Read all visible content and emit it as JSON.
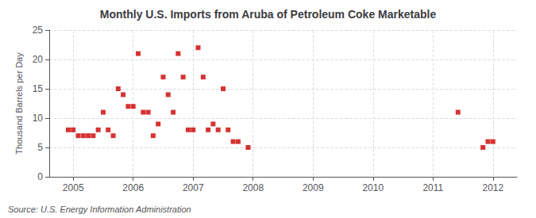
{
  "chart_data": {
    "type": "scatter",
    "title": "Monthly U.S. Imports from Aruba of Petroleum Coke Marketable",
    "ylabel": "Thousand Barrels per Day",
    "annotation": "Source: U.S. Energy Information Administration",
    "x": [
      2004.917,
      2005.0,
      2005.083,
      2005.167,
      2005.25,
      2005.333,
      2005.417,
      2005.5,
      2005.583,
      2005.667,
      2005.75,
      2005.833,
      2005.917,
      2006.0,
      2006.083,
      2006.167,
      2006.25,
      2006.333,
      2006.417,
      2006.5,
      2006.583,
      2006.667,
      2006.75,
      2006.833,
      2006.917,
      2007.0,
      2007.083,
      2007.167,
      2007.25,
      2007.333,
      2007.417,
      2007.5,
      2007.583,
      2007.667,
      2007.75,
      2007.917,
      2011.417,
      2011.833,
      2011.917,
      2012.0
    ],
    "values": [
      8,
      8,
      7,
      7,
      7,
      7,
      8,
      11,
      8,
      7,
      15,
      14,
      12,
      12,
      21,
      11,
      11,
      7,
      9,
      17,
      14,
      11,
      21,
      17,
      8,
      8,
      22,
      17,
      8,
      9,
      8,
      15,
      8,
      6,
      6,
      5,
      11,
      5,
      6,
      6
    ],
    "color": "#cc0000",
    "marker": "square",
    "xlim": [
      2004.6,
      2012.4
    ],
    "xticks": [
      2005,
      2006,
      2007,
      2008,
      2009,
      2010,
      2011,
      2012
    ],
    "ylim": [
      0,
      25
    ],
    "yticks": [
      0,
      5,
      10,
      15,
      20,
      25
    ],
    "grid": true
  }
}
